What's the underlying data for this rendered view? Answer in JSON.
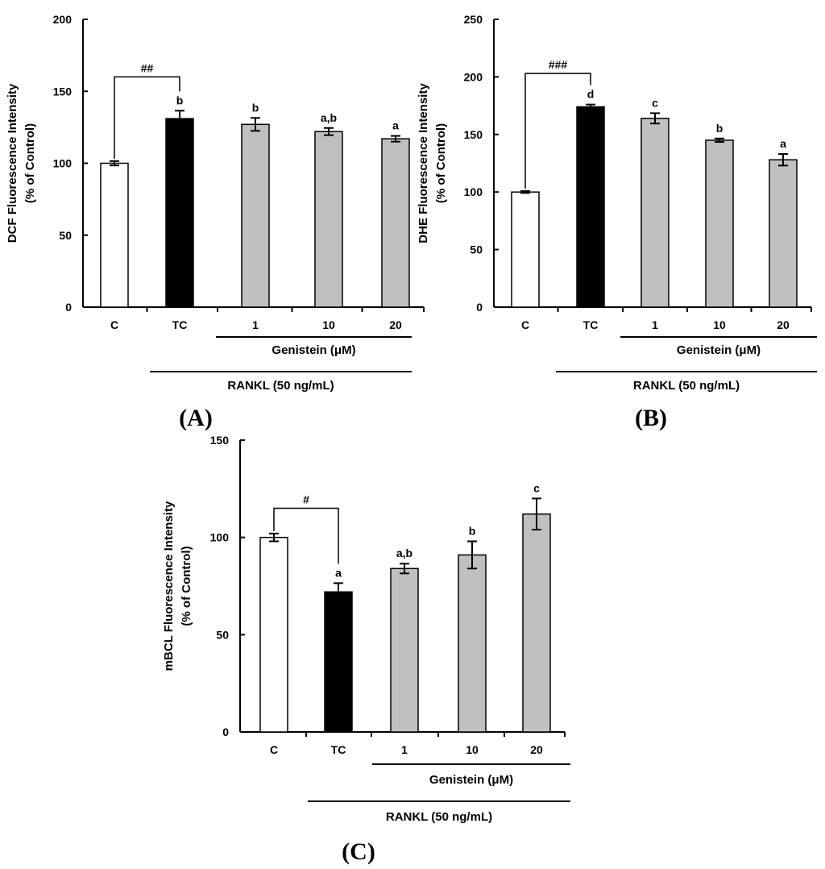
{
  "figure": {
    "group_label": "RANKL (50 ng/mL)",
    "subgroup_label": "Genistein (μM)",
    "colors": {
      "C": "#ffffff",
      "TC": "#000000",
      "genistein": "#c0c0c0",
      "stroke": "#000000"
    }
  },
  "chart_data": [
    {
      "id": "A",
      "type": "bar",
      "panel_label": "(A)",
      "ylabel_line1": "DCF Fluorescence Intensity",
      "ylabel_line2": "(% of Control)",
      "ylim": [
        0,
        200
      ],
      "yticks": [
        0,
        50,
        100,
        150,
        200
      ],
      "categories": [
        "C",
        "TC",
        "1",
        "10",
        "20"
      ],
      "values": [
        100,
        131,
        127,
        122,
        117
      ],
      "errors": [
        1.5,
        5.5,
        4.5,
        2.5,
        2
      ],
      "bar_colors": [
        "#ffffff",
        "#000000",
        "#c0c0c0",
        "#c0c0c0",
        "#c0c0c0"
      ],
      "letters": [
        "",
        "b",
        "b",
        "a,b",
        "a"
      ],
      "significance": {
        "from": 0,
        "to": 1,
        "label": "##",
        "level": 160
      }
    },
    {
      "id": "B",
      "type": "bar",
      "panel_label": "(B)",
      "ylabel_line1": "DHE Fluorescence Intensity",
      "ylabel_line2": "(% of Control)",
      "ylim": [
        0,
        250
      ],
      "yticks": [
        0,
        50,
        100,
        150,
        200,
        250
      ],
      "categories": [
        "C",
        "TC",
        "1",
        "10",
        "20"
      ],
      "values": [
        100,
        174,
        164,
        145,
        128
      ],
      "errors": [
        0.8,
        2,
        4.5,
        1.5,
        5
      ],
      "bar_colors": [
        "#ffffff",
        "#000000",
        "#c0c0c0",
        "#c0c0c0",
        "#c0c0c0"
      ],
      "letters": [
        "",
        "d",
        "c",
        "b",
        "a"
      ],
      "significance": {
        "from": 0,
        "to": 1,
        "label": "###",
        "level": 203
      }
    },
    {
      "id": "C",
      "type": "bar",
      "panel_label": "(C)",
      "ylabel_line1": "mBCL Fluorescence Intensity",
      "ylabel_line2": "(% of Control)",
      "ylim": [
        0,
        150
      ],
      "yticks": [
        0,
        50,
        100,
        150
      ],
      "categories": [
        "C",
        "TC",
        "1",
        "10",
        "20"
      ],
      "values": [
        100,
        72,
        84,
        91,
        112
      ],
      "errors": [
        2,
        4.5,
        2.5,
        7,
        8
      ],
      "bar_colors": [
        "#ffffff",
        "#000000",
        "#c0c0c0",
        "#c0c0c0",
        "#c0c0c0"
      ],
      "letters": [
        "",
        "a",
        "a,b",
        "b",
        "c"
      ],
      "significance": {
        "from": 0,
        "to": 1,
        "label": "#",
        "level": 115
      }
    }
  ]
}
